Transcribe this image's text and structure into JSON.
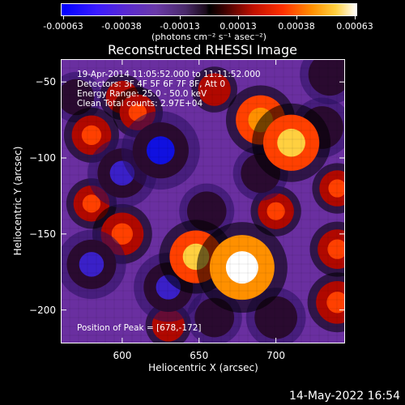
{
  "colorbar": {
    "ticks": [
      "-0.00063",
      "-0.00038",
      "-0.00013",
      "0.00013",
      "0.00038",
      "0.00063"
    ],
    "unit_label": "(photons cm⁻² s⁻¹ asec⁻²)",
    "colormap": [
      "#0000ff",
      "#5a2ad0",
      "#4a2a6a",
      "#000000",
      "#c01000",
      "#ff9000",
      "#ffffff"
    ]
  },
  "chart_data": {
    "type": "heatmap",
    "title": "Reconstructed RHESSI Image",
    "xlabel": "Heliocentric X (arcsec)",
    "ylabel": "Heliocentric Y (arcsec)",
    "xlim": [
      560,
      745
    ],
    "ylim": [
      -222,
      -35
    ],
    "x_ticks": [
      "600",
      "650",
      "700"
    ],
    "y_ticks": [
      "-50",
      "-100",
      "-150",
      "-200"
    ],
    "color_range": [
      -0.00063,
      0.00063
    ],
    "peak_position": [
      678,
      -172
    ],
    "annotations": [
      "19-Apr-2014 11:05:52.000 to 11:11:52.000",
      "Detectors: 3F 4F 5F 6F 7F 8F, Att 0",
      "Energy Range: 25.0 - 50.0 keV",
      "Clean     Total counts: 2.97E+04"
    ],
    "peak_label": "Position of Peak = [678,-172]",
    "sources": [
      {
        "x": 678,
        "y": -172,
        "intensity": 0.00063
      },
      {
        "x": 648,
        "y": -165,
        "intensity": 0.00045
      },
      {
        "x": 710,
        "y": -90,
        "intensity": 0.0005
      },
      {
        "x": 690,
        "y": -75,
        "intensity": 0.0004
      },
      {
        "x": 600,
        "y": -150,
        "intensity": 0.0003
      },
      {
        "x": 580,
        "y": -85,
        "intensity": 0.00025
      },
      {
        "x": 740,
        "y": -195,
        "intensity": 0.0003
      },
      {
        "x": 740,
        "y": -160,
        "intensity": 0.00025
      },
      {
        "x": 610,
        "y": -70,
        "intensity": 0.0002
      },
      {
        "x": 600,
        "y": -60,
        "intensity": 0.00015
      },
      {
        "x": 660,
        "y": -55,
        "intensity": 0.00015
      },
      {
        "x": 700,
        "y": -135,
        "intensity": 0.0002
      },
      {
        "x": 580,
        "y": -130,
        "intensity": 0.0002
      },
      {
        "x": 630,
        "y": -210,
        "intensity": 0.00015
      },
      {
        "x": 740,
        "y": -120,
        "intensity": 0.0002
      },
      {
        "x": 625,
        "y": -95,
        "intensity": -0.0005
      },
      {
        "x": 600,
        "y": -110,
        "intensity": -0.0004
      },
      {
        "x": 580,
        "y": -170,
        "intensity": -0.0004
      },
      {
        "x": 630,
        "y": -185,
        "intensity": -0.0004
      },
      {
        "x": 730,
        "y": -80,
        "intensity": -0.0003
      },
      {
        "x": 735,
        "y": -45,
        "intensity": -0.0003
      },
      {
        "x": 690,
        "y": -110,
        "intensity": -0.00025
      },
      {
        "x": 655,
        "y": -135,
        "intensity": -0.00025
      },
      {
        "x": 700,
        "y": -205,
        "intensity": -0.0003
      },
      {
        "x": 660,
        "y": -205,
        "intensity": -0.00025
      },
      {
        "x": 570,
        "y": -60,
        "intensity": -0.0002
      }
    ]
  },
  "footer": {
    "timestamp": "14-May-2022 16:54"
  }
}
